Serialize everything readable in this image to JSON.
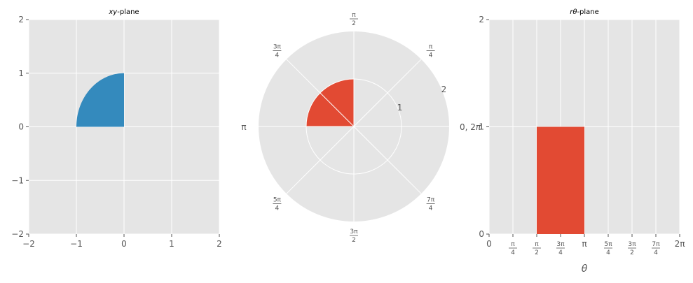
{
  "chart_data": [
    {
      "type": "area",
      "title_math": "xy",
      "title_suffix": "-plane",
      "xlim": [
        -2,
        2
      ],
      "ylim": [
        -2,
        2
      ],
      "xticks": [
        "−2",
        "−1",
        "0",
        "1",
        "2"
      ],
      "yticks": [
        "−2",
        "−1",
        "0",
        "1",
        "2"
      ],
      "region": {
        "shape": "quarter-disk",
        "r": [
          0,
          1
        ],
        "theta": [
          1.5708,
          3.1416
        ],
        "color": "#348ABD"
      },
      "grid": true
    },
    {
      "type": "area",
      "projection": "polar",
      "rlim": [
        0,
        2
      ],
      "rticks": [
        "1",
        "2"
      ],
      "theta_labels": [
        {
          "text": "0, 2",
          "math": "π"
        },
        {
          "num": "π",
          "den": "4"
        },
        {
          "num": "π",
          "den": "2"
        },
        {
          "num": "3π",
          "den": "4"
        },
        {
          "text": "π"
        },
        {
          "num": "5π",
          "den": "4"
        },
        {
          "num": "3π",
          "den": "2"
        },
        {
          "num": "7π",
          "den": "4"
        }
      ],
      "region": {
        "shape": "sector",
        "r": [
          0,
          1
        ],
        "theta": [
          1.5708,
          3.1416
        ],
        "color": "#E24A33"
      },
      "grid": true
    },
    {
      "type": "bar",
      "title_math": "rθ",
      "title_suffix": "-plane",
      "xlabel": "θ",
      "xlim": [
        0,
        6.2832
      ],
      "ylim": [
        0,
        2
      ],
      "xticks": [
        {
          "text": "0"
        },
        {
          "num": "π",
          "den": "4"
        },
        {
          "num": "π",
          "den": "2"
        },
        {
          "num": "3π",
          "den": "4"
        },
        {
          "text": "π"
        },
        {
          "num": "5π",
          "den": "4"
        },
        {
          "num": "3π",
          "den": "2"
        },
        {
          "num": "7π",
          "den": "4"
        },
        {
          "text": "2π"
        }
      ],
      "yticks": [
        "0",
        "1",
        "2"
      ],
      "region": {
        "shape": "rectangle",
        "theta": [
          1.5708,
          3.1416
        ],
        "r": [
          0,
          1
        ],
        "color": "#E24A33"
      },
      "grid": true
    }
  ]
}
